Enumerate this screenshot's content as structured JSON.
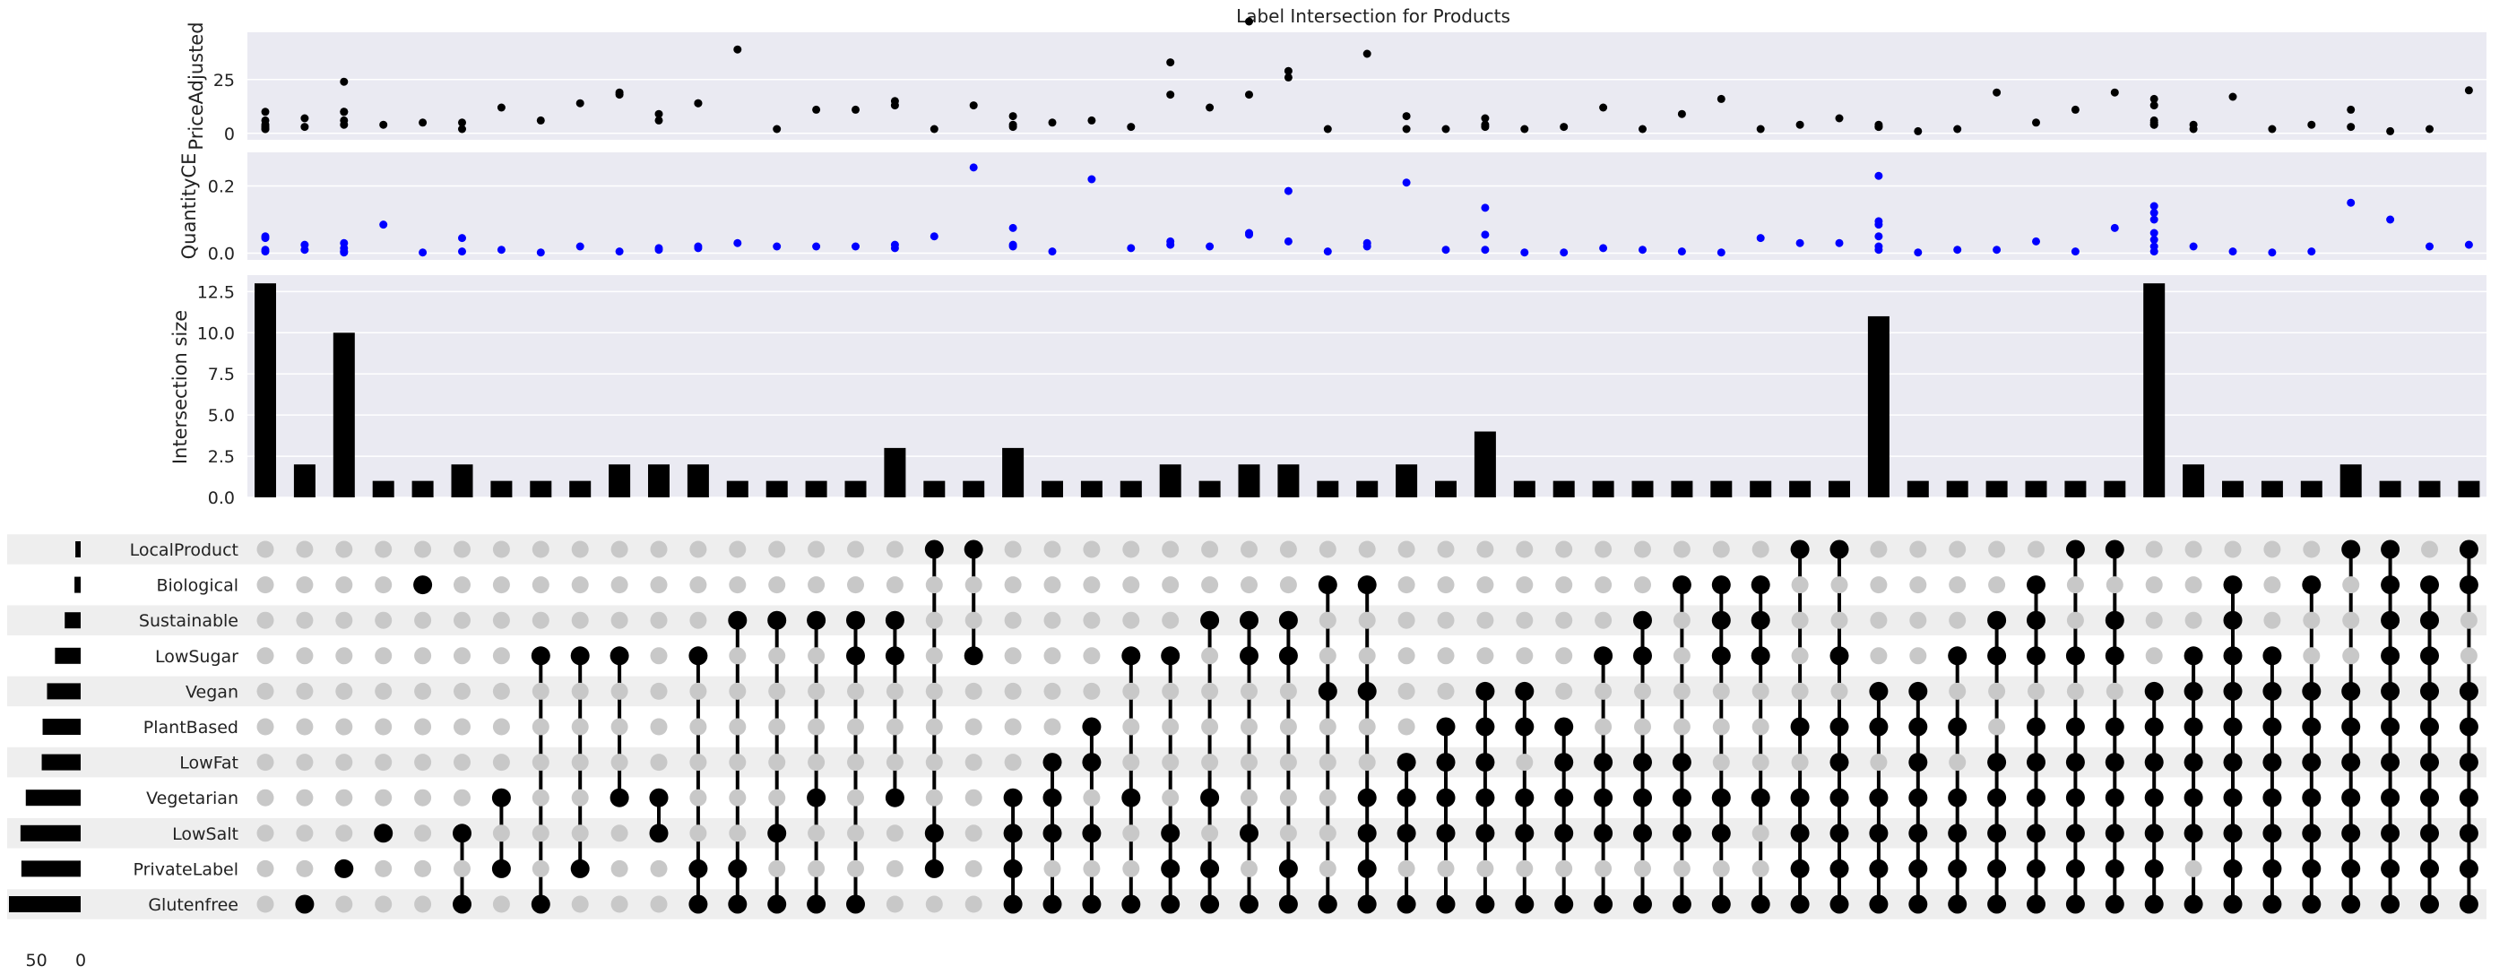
{
  "chart_data": {
    "type": "upset",
    "title": "Label Intersection for Products",
    "panels": {
      "price": {
        "ylabel": "PriceAdjusted",
        "yticks": [
          0,
          25
        ],
        "ylim": [
          -3,
          47
        ]
      },
      "quantity": {
        "ylabel": "QuantityCE",
        "yticks": [
          "0.0",
          "0.2"
        ],
        "ylim": [
          -0.02,
          0.3
        ]
      },
      "size": {
        "ylabel": "Intersection size",
        "yticks": [
          "0.0",
          "2.5",
          "5.0",
          "7.5",
          "10.0",
          "12.5"
        ],
        "ylim": [
          0,
          13.5
        ]
      }
    },
    "sets": [
      "LocalProduct",
      "Biological",
      "Sustainable",
      "LowSugar",
      "Vegan",
      "PlantBased",
      "LowFat",
      "Vegetarian",
      "LowSalt",
      "PrivateLabel",
      "Glutenfree"
    ],
    "set_sizes": [
      6,
      7,
      18,
      29,
      38,
      43,
      44,
      62,
      68,
      67,
      81
    ],
    "set_size_ticks": [
      "50",
      "0"
    ],
    "set_size_xlim": [
      0,
      81
    ],
    "intersection_sizes": [
      13,
      2,
      10,
      1,
      1,
      2,
      1,
      1,
      1,
      2,
      2,
      2,
      1,
      1,
      1,
      1,
      3,
      1,
      1,
      3,
      1,
      1,
      1,
      2,
      1,
      2,
      2,
      1,
      1,
      2,
      1,
      4,
      1,
      1,
      1,
      1,
      1,
      1,
      1,
      1,
      1,
      11,
      1,
      1,
      1,
      1,
      1,
      1,
      13,
      2,
      1,
      1,
      1,
      2,
      1,
      1,
      1
    ],
    "memberships": [
      [],
      [
        "Glutenfree"
      ],
      [
        "PrivateLabel"
      ],
      [
        "LowSalt"
      ],
      [
        "Biological"
      ],
      [
        "LowSalt",
        "Glutenfree"
      ],
      [
        "Vegetarian",
        "PrivateLabel"
      ],
      [
        "LowSugar",
        "Glutenfree"
      ],
      [
        "LowSugar",
        "PrivateLabel"
      ],
      [
        "LowSugar",
        "Vegetarian"
      ],
      [
        "Vegetarian",
        "LowSalt"
      ],
      [
        "LowSugar",
        "PrivateLabel",
        "Glutenfree"
      ],
      [
        "Sustainable",
        "PrivateLabel",
        "Glutenfree"
      ],
      [
        "Sustainable",
        "LowSalt",
        "Glutenfree"
      ],
      [
        "Sustainable",
        "Vegetarian",
        "Glutenfree"
      ],
      [
        "Sustainable",
        "LowSugar",
        "Glutenfree"
      ],
      [
        "Sustainable",
        "LowSugar",
        "Vegetarian"
      ],
      [
        "LocalProduct",
        "LowSalt",
        "PrivateLabel"
      ],
      [
        "LocalProduct",
        "LowSugar"
      ],
      [
        "Vegetarian",
        "LowSalt",
        "PrivateLabel",
        "Glutenfree"
      ],
      [
        "LowFat",
        "Vegetarian",
        "LowSalt",
        "Glutenfree"
      ],
      [
        "PlantBased",
        "LowFat",
        "LowSalt",
        "Glutenfree"
      ],
      [
        "LowSugar",
        "Vegetarian",
        "Glutenfree"
      ],
      [
        "LowSugar",
        "LowSalt",
        "PrivateLabel",
        "Glutenfree"
      ],
      [
        "Sustainable",
        "Vegetarian",
        "PrivateLabel",
        "Glutenfree"
      ],
      [
        "Sustainable",
        "LowSugar",
        "LowSalt",
        "Glutenfree"
      ],
      [
        "Sustainable",
        "LowSugar",
        "PrivateLabel",
        "Glutenfree"
      ],
      [
        "Biological",
        "Vegan",
        "Glutenfree"
      ],
      [
        "Biological",
        "Vegan",
        "Vegetarian",
        "LowSalt",
        "PrivateLabel",
        "Glutenfree"
      ],
      [
        "LowFat",
        "Vegetarian",
        "LowSalt",
        "Glutenfree"
      ],
      [
        "PlantBased",
        "LowFat",
        "Vegetarian",
        "LowSalt",
        "Glutenfree"
      ],
      [
        "Vegan",
        "PlantBased",
        "LowFat",
        "Vegetarian",
        "LowSalt",
        "Glutenfree"
      ],
      [
        "Vegan",
        "PlantBased",
        "Vegetarian",
        "LowSalt",
        "Glutenfree"
      ],
      [
        "PlantBased",
        "LowFat",
        "Vegetarian",
        "LowSalt",
        "Glutenfree"
      ],
      [
        "LowSugar",
        "LowFat",
        "Vegetarian",
        "LowSalt",
        "Glutenfree"
      ],
      [
        "Sustainable",
        "LowSugar",
        "LowFat",
        "Vegetarian",
        "LowSalt",
        "Glutenfree"
      ],
      [
        "Biological",
        "LowFat",
        "Vegetarian",
        "LowSalt",
        "Glutenfree"
      ],
      [
        "Biological",
        "Sustainable",
        "LowSugar",
        "Vegetarian",
        "LowSalt",
        "Glutenfree"
      ],
      [
        "Biological",
        "Sustainable",
        "LowSugar",
        "Vegetarian",
        "Glutenfree"
      ],
      [
        "LocalProduct",
        "PlantBased",
        "Vegetarian",
        "LowSalt",
        "PrivateLabel",
        "Glutenfree"
      ],
      [
        "LocalProduct",
        "LowSugar",
        "PlantBased",
        "LowFat",
        "Vegetarian",
        "LowSalt",
        "PrivateLabel",
        "Glutenfree"
      ],
      [
        "Vegan",
        "PlantBased",
        "Vegetarian",
        "LowSalt",
        "PrivateLabel",
        "Glutenfree"
      ],
      [
        "Vegan",
        "PlantBased",
        "LowFat",
        "Vegetarian",
        "LowSalt",
        "PrivateLabel",
        "Glutenfree"
      ],
      [
        "LowSugar",
        "PlantBased",
        "Vegetarian",
        "LowSalt",
        "PrivateLabel",
        "Glutenfree"
      ],
      [
        "Sustainable",
        "LowSugar",
        "LowFat",
        "Vegetarian",
        "LowSalt",
        "PrivateLabel",
        "Glutenfree"
      ],
      [
        "Biological",
        "Sustainable",
        "LowSugar",
        "PlantBased",
        "LowFat",
        "Vegetarian",
        "LowSalt",
        "PrivateLabel",
        "Glutenfree"
      ],
      [
        "LocalProduct",
        "LowSugar",
        "PlantBased",
        "LowFat",
        "Vegetarian",
        "LowSalt",
        "PrivateLabel",
        "Glutenfree"
      ],
      [
        "LocalProduct",
        "Sustainable",
        "LowSugar",
        "PlantBased",
        "LowFat",
        "Vegetarian",
        "LowSalt",
        "PrivateLabel",
        "Glutenfree"
      ],
      [
        "Vegan",
        "PlantBased",
        "LowFat",
        "Vegetarian",
        "LowSalt",
        "PrivateLabel",
        "Glutenfree"
      ],
      [
        "LowSugar",
        "Vegan",
        "PlantBased",
        "LowFat",
        "Vegetarian",
        "LowSalt",
        "Glutenfree"
      ],
      [
        "Biological",
        "Sustainable",
        "LowSugar",
        "Vegan",
        "PlantBased",
        "LowFat",
        "Vegetarian",
        "LowSalt",
        "PrivateLabel",
        "Glutenfree"
      ],
      [
        "LowSugar",
        "Vegan",
        "PlantBased",
        "LowFat",
        "Vegetarian",
        "LowSalt",
        "PrivateLabel",
        "Glutenfree"
      ],
      [
        "Biological",
        "Vegan",
        "PlantBased",
        "LowFat",
        "Vegetarian",
        "LowSalt",
        "PrivateLabel",
        "Glutenfree"
      ],
      [
        "LocalProduct",
        "Vegan",
        "PlantBased",
        "LowFat",
        "Vegetarian",
        "LowSalt",
        "PrivateLabel",
        "Glutenfree"
      ],
      [
        "LocalProduct",
        "Biological",
        "Sustainable",
        "LowSugar",
        "Vegan",
        "PlantBased",
        "LowFat",
        "Vegetarian",
        "LowSalt",
        "PrivateLabel",
        "Glutenfree"
      ],
      [
        "Biological",
        "Sustainable",
        "LowSugar",
        "Vegan",
        "PlantBased",
        "LowFat",
        "Vegetarian",
        "LowSalt",
        "PrivateLabel",
        "Glutenfree"
      ],
      [
        "LocalProduct",
        "Biological",
        "Vegan",
        "PlantBased",
        "LowFat",
        "Vegetarian",
        "LowSalt",
        "PrivateLabel",
        "Glutenfree"
      ]
    ],
    "price_points": [
      [
        0,
        10
      ],
      [
        0,
        6
      ],
      [
        0,
        4
      ],
      [
        0,
        3
      ],
      [
        0,
        2
      ],
      [
        0,
        2
      ],
      [
        1,
        7
      ],
      [
        1,
        3
      ],
      [
        2,
        24
      ],
      [
        2,
        10
      ],
      [
        2,
        10
      ],
      [
        2,
        6
      ],
      [
        2,
        4
      ],
      [
        3,
        4
      ],
      [
        4,
        5
      ],
      [
        5,
        5
      ],
      [
        5,
        2
      ],
      [
        6,
        12
      ],
      [
        7,
        6
      ],
      [
        8,
        14
      ],
      [
        9,
        19
      ],
      [
        9,
        18
      ],
      [
        10,
        9
      ],
      [
        10,
        6
      ],
      [
        11,
        14
      ],
      [
        11,
        14
      ],
      [
        12,
        39
      ],
      [
        13,
        2
      ],
      [
        14,
        11
      ],
      [
        15,
        11
      ],
      [
        16,
        15
      ],
      [
        16,
        13
      ],
      [
        17,
        2
      ],
      [
        18,
        13
      ],
      [
        19,
        8
      ],
      [
        19,
        4
      ],
      [
        19,
        3
      ],
      [
        20,
        5
      ],
      [
        21,
        6
      ],
      [
        22,
        3
      ],
      [
        23,
        33
      ],
      [
        23,
        18
      ],
      [
        24,
        12
      ],
      [
        25,
        52
      ],
      [
        25,
        18
      ],
      [
        26,
        29
      ],
      [
        26,
        26
      ],
      [
        27,
        2
      ],
      [
        28,
        37
      ],
      [
        29,
        2
      ],
      [
        29,
        8
      ],
      [
        30,
        2
      ],
      [
        31,
        7
      ],
      [
        31,
        4
      ],
      [
        31,
        3
      ],
      [
        32,
        2
      ],
      [
        33,
        3
      ],
      [
        34,
        12
      ],
      [
        35,
        2
      ],
      [
        36,
        9
      ],
      [
        37,
        16
      ],
      [
        38,
        2
      ],
      [
        39,
        4
      ],
      [
        40,
        7
      ],
      [
        41,
        4
      ],
      [
        41,
        3
      ],
      [
        41,
        3
      ],
      [
        42,
        1
      ],
      [
        43,
        2
      ],
      [
        44,
        19
      ],
      [
        45,
        5
      ],
      [
        46,
        11
      ],
      [
        47,
        19
      ],
      [
        48,
        6
      ],
      [
        48,
        4
      ],
      [
        48,
        16
      ],
      [
        48,
        13
      ],
      [
        48,
        5
      ],
      [
        48,
        4
      ],
      [
        49,
        2
      ],
      [
        49,
        4
      ],
      [
        50,
        17
      ],
      [
        51,
        2
      ],
      [
        52,
        4
      ],
      [
        53,
        11
      ],
      [
        53,
        3
      ],
      [
        54,
        1
      ],
      [
        55,
        2
      ],
      [
        56,
        20
      ]
    ],
    "quantity_points": [
      [
        0,
        0.05
      ],
      [
        0,
        0.045
      ],
      [
        0,
        0.01
      ],
      [
        0,
        0.005
      ],
      [
        1,
        0.01
      ],
      [
        1,
        0.025
      ],
      [
        2,
        0.03
      ],
      [
        2,
        0.015
      ],
      [
        2,
        0.005
      ],
      [
        2,
        0.002
      ],
      [
        3,
        0.085
      ],
      [
        4,
        0.002
      ],
      [
        5,
        0.005
      ],
      [
        5,
        0.045
      ],
      [
        6,
        0.01
      ],
      [
        7,
        0.002
      ],
      [
        8,
        0.02
      ],
      [
        9,
        0.005
      ],
      [
        10,
        0.015
      ],
      [
        10,
        0.01
      ],
      [
        11,
        0.015
      ],
      [
        11,
        0.02
      ],
      [
        12,
        0.03
      ],
      [
        13,
        0.02
      ],
      [
        14,
        0.02
      ],
      [
        15,
        0.02
      ],
      [
        16,
        0.015
      ],
      [
        16,
        0.025
      ],
      [
        17,
        0.05
      ],
      [
        18,
        0.255
      ],
      [
        19,
        0.025
      ],
      [
        19,
        0.02
      ],
      [
        19,
        0.075
      ],
      [
        20,
        0.005
      ],
      [
        21,
        0.22
      ],
      [
        22,
        0.015
      ],
      [
        23,
        0.025
      ],
      [
        23,
        0.035
      ],
      [
        24,
        0.02
      ],
      [
        25,
        0.06
      ],
      [
        25,
        0.055
      ],
      [
        26,
        0.185
      ],
      [
        26,
        0.035
      ],
      [
        27,
        0.005
      ],
      [
        28,
        0.02
      ],
      [
        28,
        0.03
      ],
      [
        29,
        0.21
      ],
      [
        30,
        0.01
      ],
      [
        31,
        0.135
      ],
      [
        31,
        0.055
      ],
      [
        31,
        0.01
      ],
      [
        32,
        0.002
      ],
      [
        33,
        0.002
      ],
      [
        34,
        0.015
      ],
      [
        35,
        0.01
      ],
      [
        36,
        0.005
      ],
      [
        37,
        0.002
      ],
      [
        38,
        0.045
      ],
      [
        39,
        0.03
      ],
      [
        40,
        0.03
      ],
      [
        41,
        0.23
      ],
      [
        41,
        0.095
      ],
      [
        41,
        0.085
      ],
      [
        41,
        0.05
      ],
      [
        41,
        0.02
      ],
      [
        41,
        0.01
      ],
      [
        42,
        0.002
      ],
      [
        43,
        0.01
      ],
      [
        44,
        0.01
      ],
      [
        45,
        0.035
      ],
      [
        46,
        0.005
      ],
      [
        47,
        0.075
      ],
      [
        48,
        0.14
      ],
      [
        48,
        0.12
      ],
      [
        48,
        0.1
      ],
      [
        48,
        0.06
      ],
      [
        48,
        0.04
      ],
      [
        48,
        0.02
      ],
      [
        48,
        0.005
      ],
      [
        49,
        0.02
      ],
      [
        50,
        0.005
      ],
      [
        51,
        0.002
      ],
      [
        52,
        0.005
      ],
      [
        53,
        0.15
      ],
      [
        54,
        0.1
      ],
      [
        55,
        0.02
      ],
      [
        56,
        0.025
      ]
    ],
    "colors": {
      "bar": "#000000",
      "price_dot": "#000000",
      "quantity_dot": "#0000ff",
      "inactive_dot": "#c8c8c8",
      "panel_bg": "#eaeaf2",
      "stripe": "#eeeeee"
    }
  }
}
